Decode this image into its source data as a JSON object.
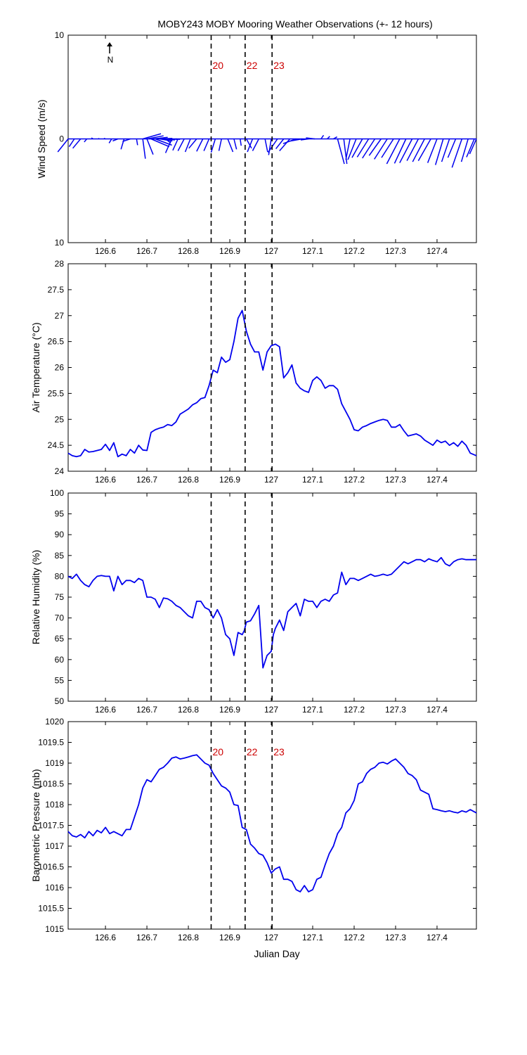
{
  "chart_data": {
    "title": "MOBY243 MOBY Mooring Weather Observations (+- 12 hours)",
    "xlabel": "Julian Day",
    "xlim": [
      126.51,
      127.495
    ],
    "xticks": [
      126.6,
      126.7,
      126.8,
      126.9,
      127,
      127.1,
      127.2,
      127.3,
      127.4
    ],
    "xtick_labels": [
      "126.6",
      "126.7",
      "126.8",
      "126.9",
      "127",
      "127.1",
      "127.2",
      "127.3",
      "127.4"
    ],
    "colors": {
      "series": "#0000ee",
      "markers": "#cc0000",
      "axes": "#000000"
    },
    "vertical_markers": [
      {
        "x": 126.855,
        "label": "20"
      },
      {
        "x": 126.937,
        "label": "22"
      },
      {
        "x": 127.002,
        "label": "23"
      }
    ],
    "panels": [
      {
        "id": "wind",
        "type": "vector",
        "ylabel": "Wind Speed (m/s)",
        "ylim": [
          -10,
          10
        ],
        "yticks": [
          10,
          0,
          -10
        ],
        "ytick_labels": [
          "10",
          "0",
          "10"
        ],
        "north_label": "N",
        "show_marker_labels": true,
        "vectors": [
          [
            126.51,
            -2,
            -2.5
          ],
          [
            126.525,
            -1,
            -1.5
          ],
          [
            126.54,
            -1.5,
            -1.8
          ],
          [
            126.555,
            -0.5,
            -0.6
          ],
          [
            126.57,
            -0.3,
            0.2
          ],
          [
            126.585,
            -0.2,
            0.1
          ],
          [
            126.6,
            -0.3,
            0.1
          ],
          [
            126.615,
            -0.5,
            -0.8
          ],
          [
            126.63,
            -1,
            -0.4
          ],
          [
            126.645,
            -0.6,
            -2
          ],
          [
            126.66,
            -1.5,
            -0.5
          ],
          [
            126.675,
            0.2,
            -1.2
          ],
          [
            126.69,
            0.5,
            -3.8
          ],
          [
            126.7,
            1.2,
            -3
          ],
          [
            126.71,
            3.5,
            -1.5
          ],
          [
            126.72,
            3.2,
            -1.2
          ],
          [
            126.73,
            2.5,
            -0.4
          ],
          [
            126.74,
            2.2,
            -0.2
          ],
          [
            126.755,
            1.5,
            -0.1
          ],
          [
            126.77,
            0.8,
            -0.1
          ],
          [
            126.69,
            3.5,
            1
          ],
          [
            126.7,
            3.2,
            0.6
          ],
          [
            126.715,
            2.8,
            0.3
          ],
          [
            126.73,
            2.5,
            0.1
          ],
          [
            126.745,
            1,
            -0.8
          ],
          [
            126.76,
            -1.2,
            -2.7
          ],
          [
            126.775,
            -1,
            -2.2
          ],
          [
            126.79,
            -1.2,
            -2.3
          ],
          [
            126.805,
            -1,
            -2.5
          ],
          [
            126.82,
            -1.5,
            -1.8
          ],
          [
            126.835,
            -1.2,
            -2.4
          ],
          [
            126.85,
            -1,
            -2.3
          ],
          [
            126.865,
            -0.8,
            -2.6
          ],
          [
            126.88,
            -0.5,
            -2.3
          ],
          [
            126.895,
            1,
            -2.5
          ],
          [
            126.91,
            0.5,
            -2
          ],
          [
            126.925,
            0.2,
            -1.3
          ],
          [
            126.94,
            1,
            -1.8
          ],
          [
            126.955,
            -1,
            -2.5
          ],
          [
            126.97,
            -1.2,
            -2.3
          ],
          [
            126.985,
            0.5,
            -2.5
          ],
          [
            127.0,
            -0.5,
            -3.1
          ],
          [
            127.015,
            -1.8,
            -2.6
          ],
          [
            127.03,
            -1.5,
            -1.9
          ],
          [
            127.045,
            -2,
            -2.3
          ],
          [
            127.06,
            -2.5,
            -0.9
          ],
          [
            127.075,
            -2.3,
            -0.4
          ],
          [
            127.09,
            -1.5,
            -0.2
          ],
          [
            127.105,
            -1.7,
            0.2
          ],
          [
            127.12,
            0.5,
            0.7
          ],
          [
            127.135,
            0.5,
            0.5
          ],
          [
            127.15,
            0.7,
            0.4
          ],
          [
            127.16,
            1.3,
            -4.8
          ],
          [
            127.175,
            0.6,
            -4.8
          ],
          [
            127.19,
            -0.8,
            -4
          ],
          [
            127.205,
            -1.6,
            -4
          ],
          [
            127.22,
            -2,
            -3.6
          ],
          [
            127.235,
            -2.2,
            -3.5
          ],
          [
            127.25,
            -2.4,
            -3.7
          ],
          [
            127.265,
            -2.3,
            -3.2
          ],
          [
            127.28,
            -2.5,
            -3.9
          ],
          [
            127.295,
            -2.3,
            -3.6
          ],
          [
            127.31,
            -2.5,
            -4.8
          ],
          [
            127.325,
            -2.2,
            -4.7
          ],
          [
            127.34,
            -2.4,
            -4.6
          ],
          [
            127.355,
            -2.2,
            -4.2
          ],
          [
            127.37,
            -2.3,
            -4.4
          ],
          [
            127.385,
            -2.4,
            -4.2
          ],
          [
            127.4,
            -1.8,
            -4.6
          ],
          [
            127.415,
            -1.5,
            -5
          ],
          [
            127.43,
            -1.5,
            -4.4
          ],
          [
            127.445,
            -1.5,
            -3.6
          ],
          [
            127.46,
            -1.9,
            -5.5
          ],
          [
            127.475,
            -1.3,
            -4.4
          ],
          [
            127.49,
            -1.5,
            -3.5
          ],
          [
            127.495,
            -1.3,
            -2.9
          ]
        ]
      },
      {
        "id": "air_temperature",
        "type": "line",
        "ylabel": "Air Temperature (°C)",
        "ylim": [
          24,
          28
        ],
        "yticks": [
          24,
          24.5,
          25,
          25.5,
          26,
          26.5,
          27,
          27.5,
          28
        ],
        "ytick_labels": [
          "24",
          "24.5",
          "25",
          "25.5",
          "26",
          "26.5",
          "27",
          "27.5",
          "28"
        ],
        "x": [
          126.51,
          126.52,
          126.53,
          126.54,
          126.55,
          126.56,
          126.57,
          126.58,
          126.59,
          126.6,
          126.61,
          126.62,
          126.63,
          126.64,
          126.65,
          126.66,
          126.67,
          126.68,
          126.69,
          126.7,
          126.71,
          126.72,
          126.73,
          126.74,
          126.75,
          126.76,
          126.77,
          126.78,
          126.79,
          126.8,
          126.81,
          126.82,
          126.83,
          126.84,
          126.85,
          126.86,
          126.87,
          126.88,
          126.89,
          126.9,
          126.91,
          126.92,
          126.93,
          126.94,
          126.95,
          126.96,
          126.97,
          126.98,
          126.99,
          127.0,
          127.01,
          127.02,
          127.03,
          127.04,
          127.05,
          127.06,
          127.07,
          127.08,
          127.09,
          127.1,
          127.11,
          127.12,
          127.13,
          127.14,
          127.15,
          127.16,
          127.17,
          127.18,
          127.19,
          127.2,
          127.21,
          127.22,
          127.23,
          127.24,
          127.25,
          127.26,
          127.27,
          127.28,
          127.29,
          127.3,
          127.31,
          127.32,
          127.33,
          127.34,
          127.35,
          127.36,
          127.37,
          127.38,
          127.39,
          127.4,
          127.41,
          127.42,
          127.43,
          127.44,
          127.45,
          127.46,
          127.47,
          127.48,
          127.495
        ],
        "y": [
          24.35,
          24.3,
          24.28,
          24.3,
          24.42,
          24.37,
          24.38,
          24.4,
          24.42,
          24.52,
          24.4,
          24.55,
          24.28,
          24.33,
          24.3,
          24.42,
          24.35,
          24.5,
          24.41,
          24.4,
          24.75,
          24.8,
          24.83,
          24.85,
          24.9,
          24.88,
          24.95,
          25.1,
          25.15,
          25.2,
          25.28,
          25.32,
          25.4,
          25.42,
          25.65,
          25.95,
          25.9,
          26.2,
          26.1,
          26.15,
          26.5,
          26.95,
          27.1,
          26.7,
          26.45,
          26.3,
          26.3,
          25.95,
          26.3,
          26.42,
          26.45,
          26.4,
          25.8,
          25.9,
          26.05,
          25.7,
          25.6,
          25.55,
          25.52,
          25.75,
          25.82,
          25.75,
          25.6,
          25.65,
          25.65,
          25.58,
          25.3,
          25.15,
          25.0,
          24.8,
          24.78,
          24.85,
          24.88,
          24.92,
          24.95,
          24.98,
          25.0,
          24.98,
          24.85,
          24.85,
          24.9,
          24.78,
          24.68,
          24.7,
          24.72,
          24.68,
          24.6,
          24.55,
          24.5,
          24.6,
          24.55,
          24.58,
          24.5,
          24.55,
          24.48,
          24.58,
          24.5,
          24.35,
          24.3
        ]
      },
      {
        "id": "relative_humidity",
        "type": "line",
        "ylabel": "Relative Humidity (%)",
        "ylim": [
          50,
          100
        ],
        "yticks": [
          50,
          55,
          60,
          65,
          70,
          75,
          80,
          85,
          90,
          95,
          100
        ],
        "ytick_labels": [
          "50",
          "55",
          "60",
          "65",
          "70",
          "75",
          "80",
          "85",
          "90",
          "95",
          "100"
        ],
        "x": [
          126.51,
          126.52,
          126.53,
          126.54,
          126.55,
          126.56,
          126.57,
          126.58,
          126.59,
          126.6,
          126.61,
          126.62,
          126.63,
          126.64,
          126.65,
          126.66,
          126.67,
          126.68,
          126.69,
          126.7,
          126.71,
          126.72,
          126.73,
          126.74,
          126.75,
          126.76,
          126.77,
          126.78,
          126.79,
          126.8,
          126.81,
          126.82,
          126.83,
          126.84,
          126.85,
          126.86,
          126.87,
          126.88,
          126.89,
          126.9,
          126.91,
          126.92,
          126.93,
          126.935,
          126.94,
          126.95,
          126.96,
          126.97,
          126.98,
          126.99,
          127.0,
          127.005,
          127.01,
          127.02,
          127.03,
          127.04,
          127.05,
          127.06,
          127.07,
          127.08,
          127.09,
          127.1,
          127.11,
          127.12,
          127.13,
          127.14,
          127.15,
          127.16,
          127.17,
          127.18,
          127.19,
          127.2,
          127.21,
          127.22,
          127.23,
          127.24,
          127.25,
          127.26,
          127.27,
          127.28,
          127.29,
          127.3,
          127.31,
          127.32,
          127.33,
          127.34,
          127.35,
          127.36,
          127.37,
          127.38,
          127.39,
          127.4,
          127.41,
          127.42,
          127.43,
          127.44,
          127.45,
          127.46,
          127.47,
          127.48,
          127.495
        ],
        "y": [
          80,
          79.5,
          80.5,
          79,
          78,
          77.5,
          79,
          80,
          80.2,
          80,
          80,
          76.5,
          80,
          78,
          79,
          79,
          78.5,
          79.5,
          79,
          75,
          75,
          74.5,
          72.5,
          74.8,
          74.6,
          74,
          73,
          72.5,
          71.5,
          70.5,
          70,
          74,
          74,
          72.5,
          72,
          70,
          72,
          70,
          66,
          65,
          61,
          66.5,
          66,
          67,
          69,
          69.3,
          71,
          73,
          58,
          61,
          62,
          66,
          67.5,
          69.5,
          67,
          71.5,
          72.5,
          73.5,
          70.5,
          74.5,
          74,
          74,
          72.5,
          74,
          74.5,
          74,
          75.5,
          76,
          81,
          78,
          79.5,
          79.5,
          79,
          79.5,
          80,
          80.5,
          80,
          80.2,
          80.5,
          80.2,
          80.5,
          81.5,
          82.5,
          83.5,
          83,
          83.5,
          84,
          84,
          83.5,
          84.2,
          83.8,
          83.5,
          84.5,
          83,
          82.5,
          83.5,
          84,
          84.2,
          84,
          84,
          84
        ]
      },
      {
        "id": "barometric_pressure",
        "type": "line",
        "ylabel": "Barometric Pressure (mb)",
        "ylim": [
          1015,
          1020
        ],
        "yticks": [
          1015,
          1015.5,
          1016,
          1016.5,
          1017,
          1017.5,
          1018,
          1018.5,
          1019,
          1019.5,
          1020
        ],
        "ytick_labels": [
          "1015",
          "1015.5",
          "1016",
          "1016.5",
          "1017",
          "1017.5",
          "1018",
          "1018.5",
          "1019",
          "1019.5",
          "1020"
        ],
        "show_marker_labels": true,
        "x": [
          126.51,
          126.52,
          126.53,
          126.54,
          126.55,
          126.56,
          126.57,
          126.58,
          126.59,
          126.6,
          126.61,
          126.62,
          126.63,
          126.64,
          126.65,
          126.66,
          126.67,
          126.68,
          126.69,
          126.7,
          126.71,
          126.72,
          126.73,
          126.74,
          126.75,
          126.76,
          126.77,
          126.78,
          126.79,
          126.8,
          126.81,
          126.82,
          126.83,
          126.84,
          126.85,
          126.86,
          126.87,
          126.88,
          126.89,
          126.9,
          126.91,
          126.92,
          126.93,
          126.94,
          126.95,
          126.96,
          126.97,
          126.98,
          126.99,
          127.0,
          127.01,
          127.02,
          127.03,
          127.04,
          127.05,
          127.06,
          127.07,
          127.08,
          127.09,
          127.1,
          127.11,
          127.12,
          127.13,
          127.14,
          127.15,
          127.16,
          127.17,
          127.18,
          127.19,
          127.2,
          127.21,
          127.22,
          127.23,
          127.24,
          127.25,
          127.26,
          127.27,
          127.28,
          127.29,
          127.3,
          127.31,
          127.32,
          127.33,
          127.34,
          127.35,
          127.36,
          127.37,
          127.38,
          127.39,
          127.4,
          127.41,
          127.42,
          127.43,
          127.44,
          127.45,
          127.46,
          127.47,
          127.48,
          127.495
        ],
        "y": [
          1017.35,
          1017.25,
          1017.22,
          1017.28,
          1017.2,
          1017.35,
          1017.25,
          1017.38,
          1017.32,
          1017.45,
          1017.3,
          1017.35,
          1017.3,
          1017.25,
          1017.4,
          1017.4,
          1017.7,
          1018.0,
          1018.4,
          1018.6,
          1018.55,
          1018.7,
          1018.85,
          1018.9,
          1019.0,
          1019.12,
          1019.15,
          1019.1,
          1019.12,
          1019.15,
          1019.18,
          1019.2,
          1019.1,
          1019.0,
          1018.95,
          1018.75,
          1018.6,
          1018.45,
          1018.4,
          1018.3,
          1018.0,
          1017.98,
          1017.45,
          1017.4,
          1017.05,
          1016.95,
          1016.82,
          1016.78,
          1016.6,
          1016.35,
          1016.45,
          1016.5,
          1016.2,
          1016.2,
          1016.15,
          1015.95,
          1015.9,
          1016.05,
          1015.9,
          1015.95,
          1016.2,
          1016.25,
          1016.55,
          1016.82,
          1017.0,
          1017.3,
          1017.45,
          1017.8,
          1017.9,
          1018.1,
          1018.5,
          1018.55,
          1018.75,
          1018.85,
          1018.9,
          1019.0,
          1019.02,
          1018.98,
          1019.05,
          1019.1,
          1019.0,
          1018.9,
          1018.75,
          1018.7,
          1018.6,
          1018.35,
          1018.3,
          1018.25,
          1017.9,
          1017.88,
          1017.85,
          1017.83,
          1017.85,
          1017.82,
          1017.8,
          1017.85,
          1017.82,
          1017.88,
          1017.8
        ]
      }
    ]
  }
}
